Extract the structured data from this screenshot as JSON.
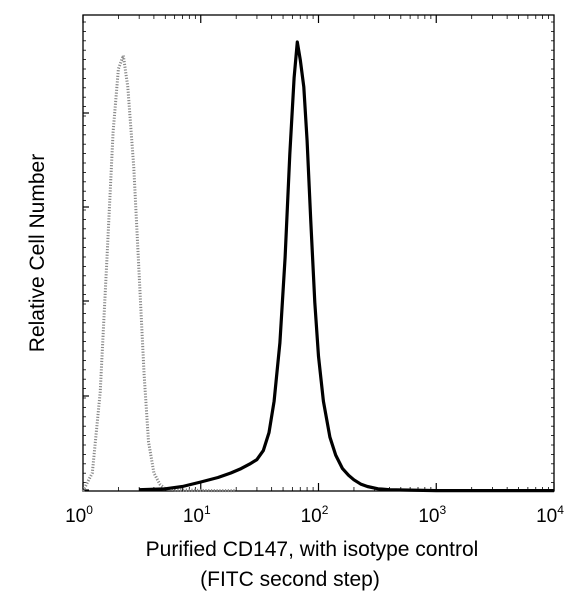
{
  "chart_data": {
    "type": "line",
    "xlabel": "Purified CD147, with isotype control",
    "xlabel_line2": "(FITC second step)",
    "ylabel": "Relative Cell Number",
    "x_scale": "log",
    "xlim": [
      1,
      10000
    ],
    "ylim": [
      0,
      100
    ],
    "x_ticks": [
      {
        "base": "10",
        "exp": "0"
      },
      {
        "base": "10",
        "exp": "1"
      },
      {
        "base": "10",
        "exp": "2"
      },
      {
        "base": "10",
        "exp": "3"
      },
      {
        "base": "10",
        "exp": "4"
      }
    ],
    "grid": false,
    "series": [
      {
        "style": "dotted-gray",
        "color": "#8a8a8a",
        "x": [
          1.0,
          1.2,
          1.4,
          1.6,
          1.8,
          2.0,
          2.2,
          2.4,
          2.7,
          3.0,
          3.3,
          3.6,
          4.0,
          4.5,
          5.0,
          6.0,
          8.0,
          12.0,
          20.0
        ],
        "y": [
          0,
          4,
          22,
          52,
          80,
          94,
          97,
          90,
          72,
          48,
          26,
          11,
          4,
          1.5,
          0.5,
          0.3,
          0.2,
          0.1,
          0.1
        ]
      },
      {
        "style": "solid-black",
        "color": "#000000",
        "x": [
          3,
          5,
          7,
          10,
          14,
          18,
          22,
          26,
          30,
          34,
          38,
          42,
          47,
          52,
          57,
          62,
          66,
          70,
          75,
          80,
          86,
          93,
          100,
          110,
          125,
          140,
          160,
          180,
          200,
          230,
          260,
          320,
          400,
          600,
          1000,
          2000,
          10000
        ],
        "y": [
          0.3,
          0.5,
          1,
          2,
          3,
          4,
          5,
          6,
          7,
          9,
          13,
          20,
          33,
          52,
          75,
          92,
          100,
          96,
          90,
          78,
          60,
          42,
          30,
          20,
          12,
          8,
          5,
          3.5,
          2.5,
          1.5,
          1,
          0.5,
          0.3,
          0.2,
          0.1,
          0.1,
          0.1
        ]
      }
    ]
  }
}
